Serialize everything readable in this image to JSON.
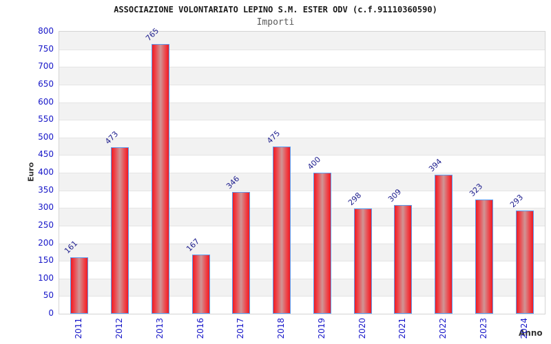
{
  "chart_data": {
    "type": "bar",
    "title": "ASSOCIAZIONE VOLONTARIATO LEPINO S.M. ESTER ODV (c.f.91110360590)",
    "subtitle": "Importi",
    "xlabel": "Anno",
    "ylabel": "Euro",
    "categories": [
      "2011",
      "2012",
      "2013",
      "2016",
      "2017",
      "2018",
      "2019",
      "2020",
      "2021",
      "2022",
      "2023",
      "2024"
    ],
    "values": [
      161,
      473,
      765,
      167,
      346,
      475,
      400,
      298,
      309,
      394,
      323,
      293
    ],
    "ylim": [
      0,
      800
    ],
    "ytick_step": 50,
    "grid": "horizontal gridlines with alternating gray/white bands every 50",
    "legend": "none",
    "colors": {
      "bar_edge_red": "#ee1c23",
      "bar_center": "#d09595",
      "bar_border_blue": "#5b9cf0",
      "tick_label_blue": "#1515c8",
      "value_label_navy": "#1b1b8c",
      "axis_title_gray": "#333333",
      "subtitle_gray": "#595959",
      "band_gray": "#f2f2f2",
      "gridline": "#e4e4e4",
      "plot_border": "#d4d4d4"
    }
  }
}
